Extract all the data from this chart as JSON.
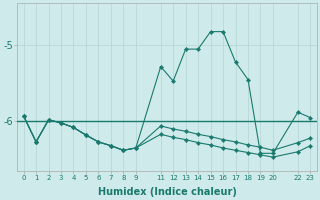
{
  "xlabel": "Humidex (Indice chaleur)",
  "background_color": "#ceeaea",
  "grid_color": "#b8d8d8",
  "line_color": "#1a7a6e",
  "x_ticks": [
    0,
    1,
    2,
    3,
    4,
    5,
    6,
    7,
    8,
    9,
    11,
    12,
    13,
    14,
    15,
    16,
    17,
    18,
    19,
    20,
    22,
    23
  ],
  "x_tick_labels": [
    "0",
    "1",
    "2",
    "3",
    "4",
    "5",
    "6",
    "7",
    "8",
    "9",
    "11",
    "12",
    "13",
    "14",
    "15",
    "16",
    "17",
    "18",
    "19",
    "20",
    "22",
    "23"
  ],
  "ylim": [
    -6.65,
    -4.45
  ],
  "yticks": [
    -6.0,
    -5.0
  ],
  "series1_x": [
    0,
    1,
    2,
    3,
    4,
    5,
    6,
    7,
    8,
    9,
    11,
    12,
    13,
    14,
    15,
    16,
    17,
    18,
    19,
    20,
    22,
    23
  ],
  "series1_y": [
    -5.93,
    -6.27,
    -5.98,
    -6.02,
    -6.08,
    -6.18,
    -6.27,
    -6.32,
    -6.38,
    -6.35,
    -5.28,
    -5.47,
    -5.05,
    -5.05,
    -4.82,
    -4.82,
    -5.22,
    -5.45,
    -6.42,
    -6.42,
    -5.88,
    -5.95
  ],
  "series2_x": [
    0,
    1,
    2,
    3,
    4,
    5,
    6,
    7,
    8,
    9,
    11,
    12,
    13,
    14,
    15,
    16,
    17,
    18,
    19,
    20,
    22,
    23
  ],
  "series2_y": [
    -5.93,
    -6.27,
    -5.98,
    -6.02,
    -6.08,
    -6.18,
    -6.27,
    -6.32,
    -6.38,
    -6.35,
    -6.06,
    -6.1,
    -6.13,
    -6.17,
    -6.2,
    -6.24,
    -6.27,
    -6.31,
    -6.34,
    -6.38,
    -6.28,
    -6.22
  ],
  "series3_x": [
    0,
    1,
    2,
    3,
    4,
    5,
    6,
    7,
    8,
    9,
    11,
    12,
    13,
    14,
    15,
    16,
    17,
    18,
    19,
    20,
    22,
    23
  ],
  "series3_y": [
    -5.93,
    -6.27,
    -5.98,
    -6.02,
    -6.08,
    -6.18,
    -6.27,
    -6.32,
    -6.38,
    -6.35,
    -6.17,
    -6.21,
    -6.24,
    -6.28,
    -6.31,
    -6.35,
    -6.38,
    -6.41,
    -6.44,
    -6.47,
    -6.4,
    -6.32
  ],
  "hline_y": -6.0,
  "hline_x1": 0,
  "hline_x2": 23
}
